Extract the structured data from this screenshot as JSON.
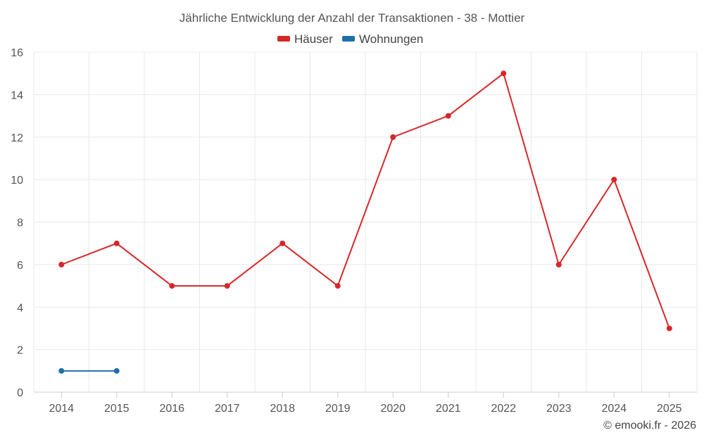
{
  "chart_data": {
    "type": "line",
    "title": "Jährliche Entwicklung der Anzahl der Transaktionen - 38 - Mottier",
    "categories": [
      "2014",
      "2015",
      "2016",
      "2017",
      "2018",
      "2019",
      "2020",
      "2021",
      "2022",
      "2023",
      "2024",
      "2025"
    ],
    "series": [
      {
        "name": "Häuser",
        "color": "#d62728",
        "values": [
          6,
          7,
          5,
          5,
          7,
          5,
          12,
          13,
          15,
          6,
          10,
          3
        ]
      },
      {
        "name": "Wohnungen",
        "color": "#1f6fa8",
        "values": [
          1,
          1,
          null,
          null,
          null,
          null,
          null,
          null,
          null,
          null,
          null,
          null
        ]
      }
    ],
    "ylim": [
      0,
      16
    ],
    "yticks": [
      0,
      2,
      4,
      6,
      8,
      10,
      12,
      14,
      16
    ],
    "xlabel": "",
    "ylabel": "",
    "legend_position": "top-center",
    "grid": true
  },
  "credit": "© emooki.fr - 2026"
}
